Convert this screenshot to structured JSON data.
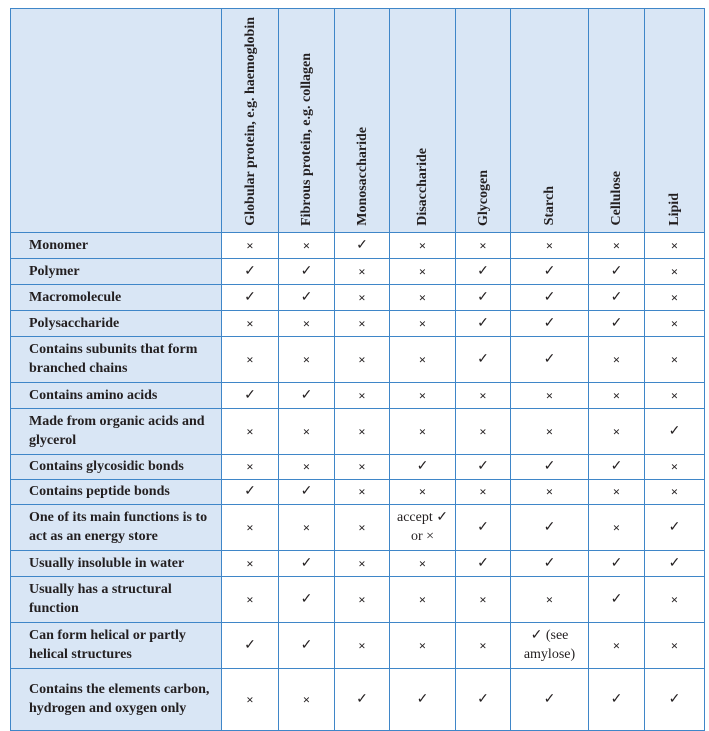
{
  "columns": [
    "Globular protein, e.g. haemoglobin",
    "Fibrous protein, e.g. collagen",
    "Monosaccharide",
    "Disaccharide",
    "Glycogen",
    "Starch",
    "Cellulose",
    "Lipid"
  ],
  "rows": [
    {
      "label": "Monomer",
      "values": [
        "×",
        "×",
        "✓",
        "×",
        "×",
        "×",
        "×",
        "×"
      ]
    },
    {
      "label": "Polymer",
      "values": [
        "✓",
        "✓",
        "×",
        "×",
        "✓",
        "✓",
        "✓",
        "×"
      ]
    },
    {
      "label": "Macromolecule",
      "values": [
        "✓",
        "✓",
        "×",
        "×",
        "✓",
        "✓",
        "✓",
        "×"
      ]
    },
    {
      "label": "Polysaccharide",
      "values": [
        "×",
        "×",
        "×",
        "×",
        "✓",
        "✓",
        "✓",
        "×"
      ]
    },
    {
      "label": "Contains subunits that form branched chains",
      "values": [
        "×",
        "×",
        "×",
        "×",
        "✓",
        "✓",
        "×",
        "×"
      ]
    },
    {
      "label": "Contains amino acids",
      "values": [
        "✓",
        "✓",
        "×",
        "×",
        "×",
        "×",
        "×",
        "×"
      ]
    },
    {
      "label": "Made from organic acids and glycerol",
      "values": [
        "×",
        "×",
        "×",
        "×",
        "×",
        "×",
        "×",
        "✓"
      ]
    },
    {
      "label": "Contains glycosidic bonds",
      "values": [
        "×",
        "×",
        "×",
        "✓",
        "✓",
        "✓",
        "✓",
        "×"
      ]
    },
    {
      "label": "Contains peptide bonds",
      "values": [
        "✓",
        "✓",
        "×",
        "×",
        "×",
        "×",
        "×",
        "×"
      ]
    },
    {
      "label": "One of its main functions is to act as an energy store",
      "values": [
        "×",
        "×",
        "×",
        "accept ✓ or ×",
        "✓",
        "✓",
        "×",
        "✓"
      ]
    },
    {
      "label": "Usually insoluble in water",
      "values": [
        "×",
        "✓",
        "×",
        "×",
        "✓",
        "✓",
        "✓",
        "✓"
      ]
    },
    {
      "label": "Usually has a structural function",
      "values": [
        "×",
        "✓",
        "×",
        "×",
        "×",
        "×",
        "✓",
        "×"
      ]
    },
    {
      "label": "Can form helical or partly helical structures",
      "values": [
        "✓",
        "✓",
        "×",
        "×",
        "×",
        "✓ (see amylose)",
        "×",
        "×"
      ]
    },
    {
      "label": "Contains the elements carbon, hydrogen and oxygen only",
      "values": [
        "×",
        "×",
        "✓",
        "✓",
        "✓",
        "✓",
        "✓",
        "✓"
      ]
    }
  ]
}
